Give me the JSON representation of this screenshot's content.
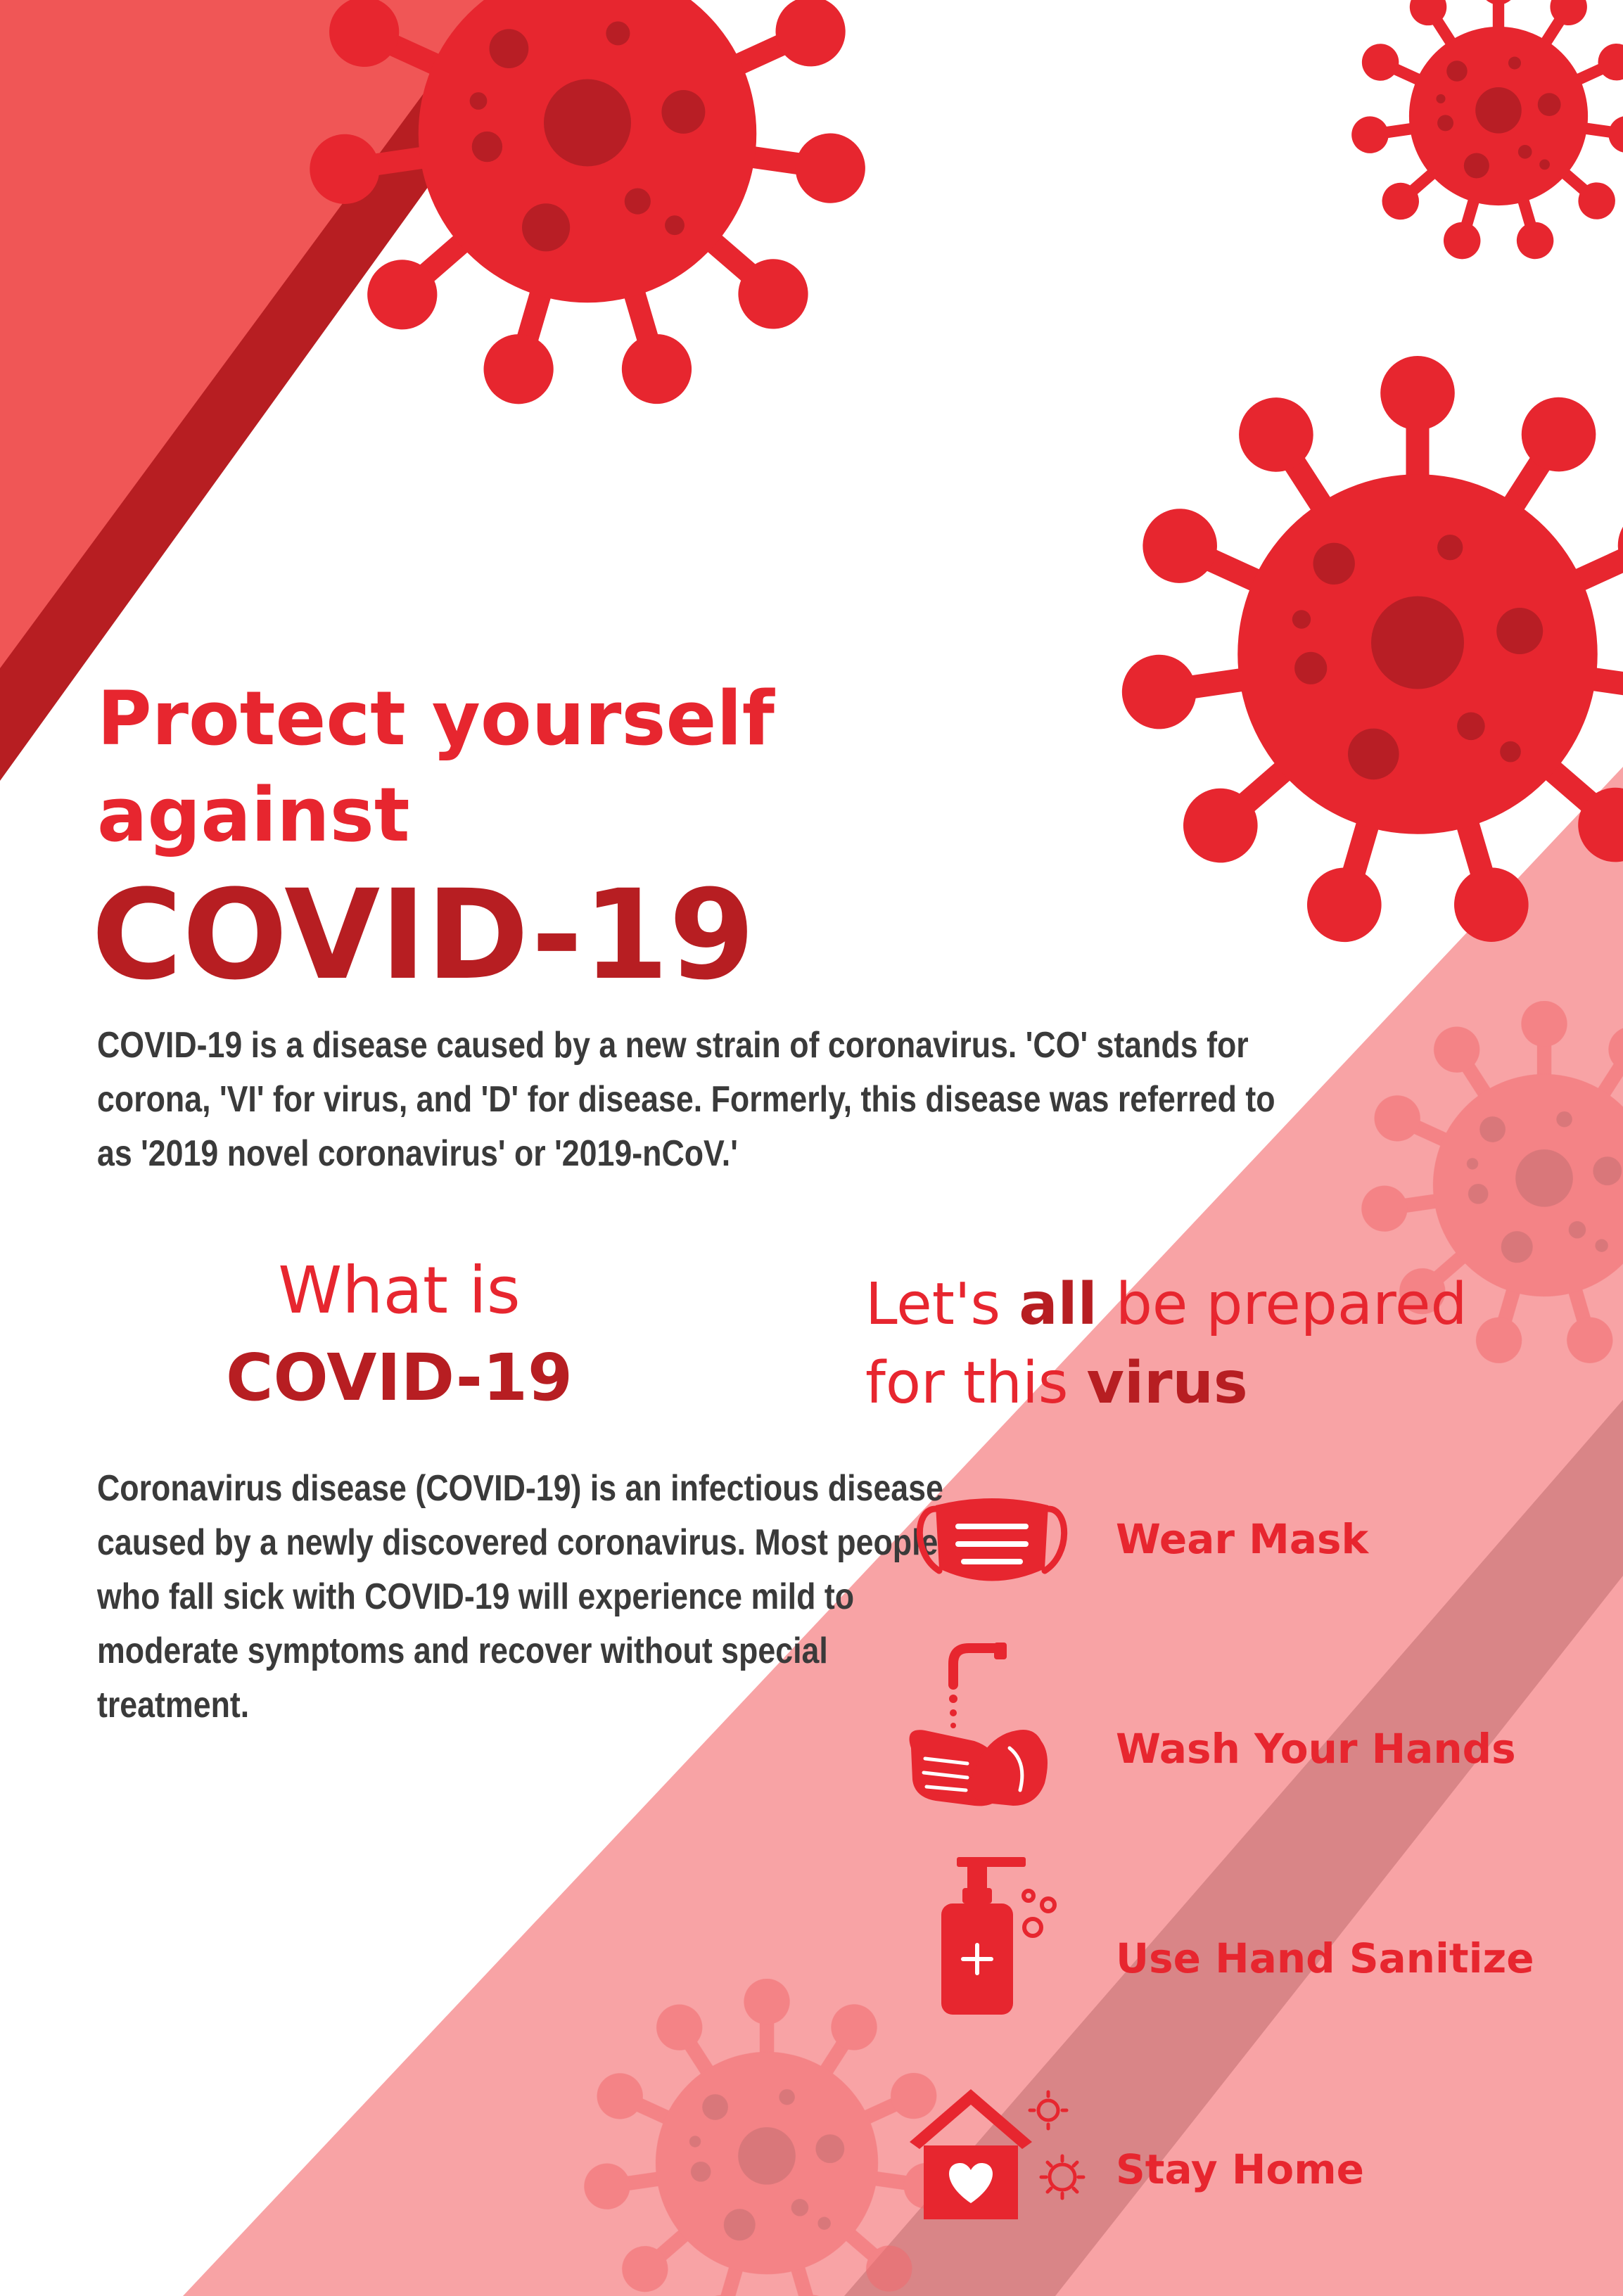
{
  "headline": {
    "line1": "Protect yourself",
    "line2": "against",
    "line3": "COVID-19"
  },
  "intro": "COVID-19 is a disease caused by a new strain of coronavirus. 'CO' stands for corona, 'VI' for virus, and 'D' for disease. Formerly, this disease was referred to as '2019 novel coronavirus' or '2019-nCoV.'",
  "what_is": {
    "line1": "What is",
    "line2": "COVID-19",
    "body": "Coronavirus disease (COVID-19) is an infectious disease caused by a newly discovered coronavirus. Most people who fall sick with COVID-19 will experience mild to moderate symptoms and recover without special treatment."
  },
  "prepared": {
    "line1_a": "Let's ",
    "line1_b": "all",
    "line1_c": " be prepared",
    "line2_a": "for this ",
    "line2_b": "virus"
  },
  "actions": [
    {
      "label": "Wear Mask",
      "icon": "mask-icon"
    },
    {
      "label": "Wash Your Hands",
      "icon": "hand-washing-icon"
    },
    {
      "label": "Use Hand Sanitize",
      "icon": "sanitizer-bottle-icon"
    },
    {
      "label": "Stay Home",
      "icon": "home-icon"
    }
  ],
  "colors": {
    "primary_red": "#e7262f",
    "dark_red": "#b71e22",
    "light_red": "#f05656",
    "pink_band": "#f8a3a5",
    "band_shadow": "#d98587",
    "text": "#3a3a3a"
  }
}
